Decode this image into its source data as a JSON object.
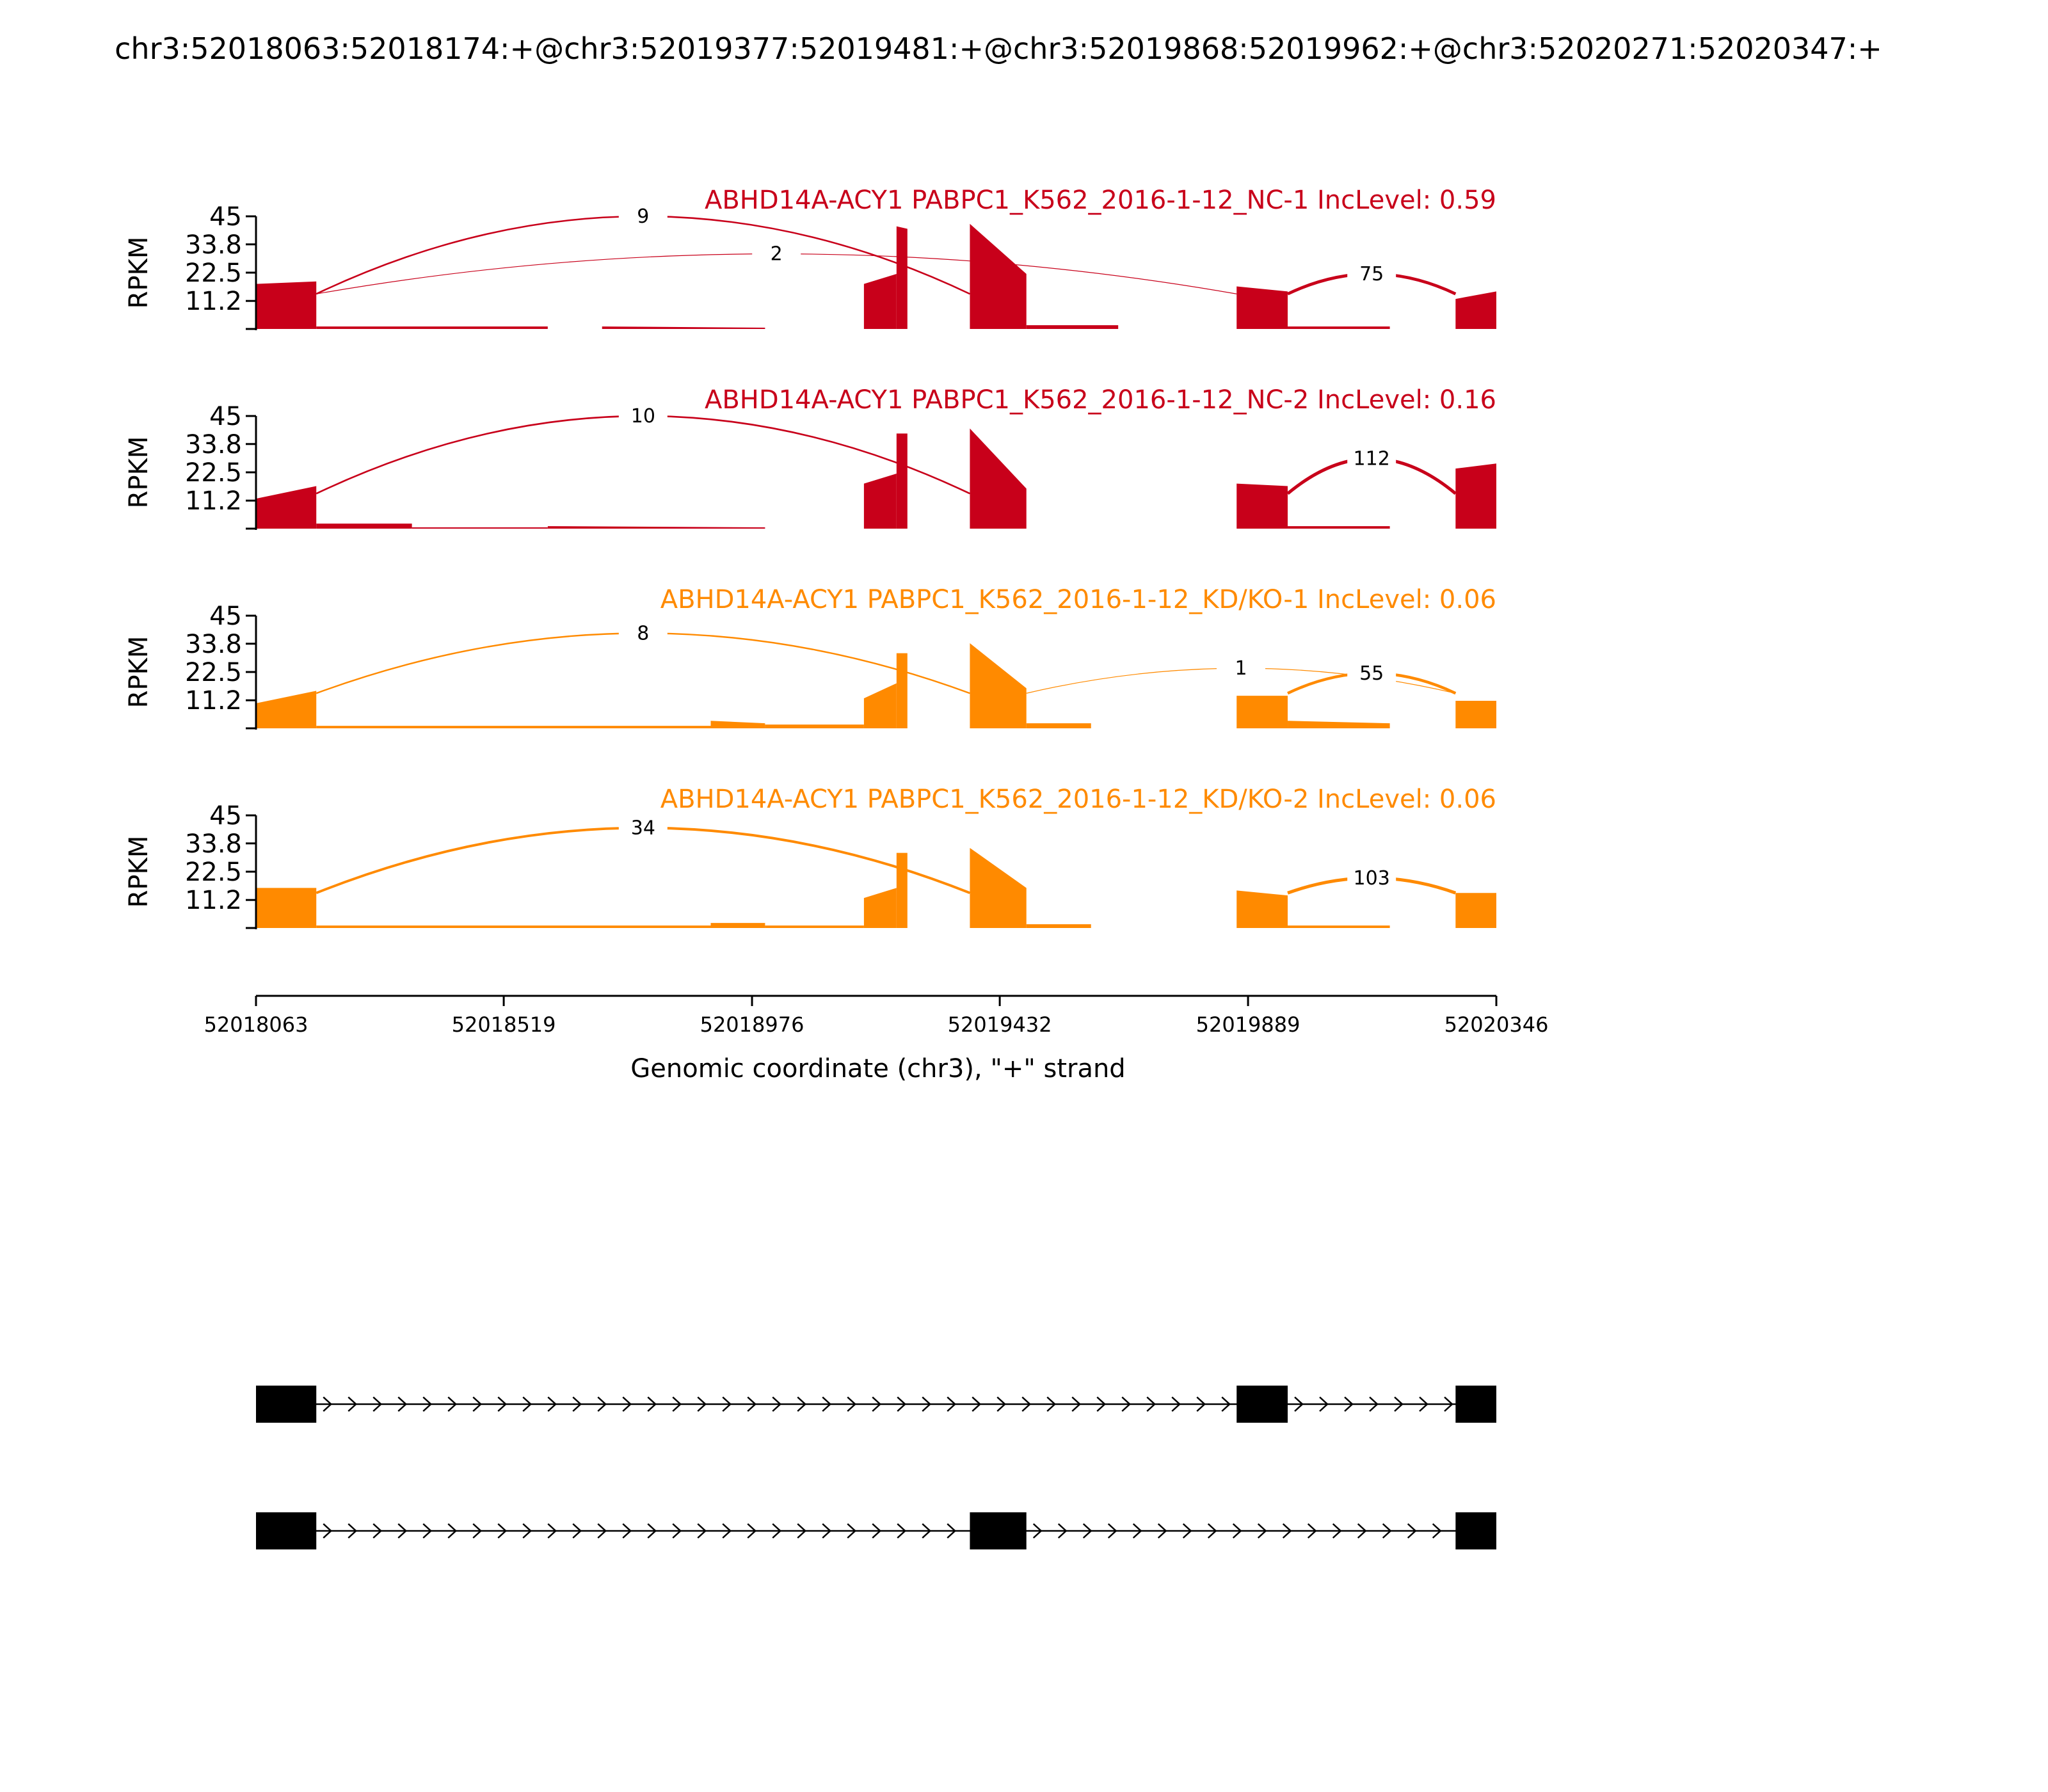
{
  "chart_data": {
    "type": "area",
    "title": "chr3:52018063:52018174:+@chr3:52019377:52019481:+@chr3:52019868:52019962:+@chr3:52020271:52020347:+",
    "xlabel": "Genomic coordinate (chr3), \"+\" strand",
    "ylabel": "RPKM",
    "xlim": [
      52018063,
      52020346
    ],
    "ylim": [
      0,
      45
    ],
    "x_ticks": [
      "52018063",
      "52018519",
      "52018976",
      "52019432",
      "52019889",
      "52020346"
    ],
    "y_ticks": [
      "11.2",
      "22.5",
      "33.8",
      "45"
    ],
    "colors": {
      "NC": "#c8001a",
      "KD": "#ff8a00",
      "axis": "#000000",
      "gene": "#000000"
    },
    "tracks": [
      {
        "label": "ABHD14A-ACY1 PABPC1_K562_2016-1-12_NC-1 IncLevel: 0.59",
        "color": "#c8001a",
        "coverage": [
          {
            "start": 52018063,
            "end": 52018174,
            "from": 18,
            "to": 19
          },
          {
            "start": 52018174,
            "end": 52018600,
            "from": 1,
            "to": 1
          },
          {
            "start": 52018700,
            "end": 52019000,
            "from": 1,
            "to": 0.5
          },
          {
            "start": 52019182,
            "end": 52019242,
            "from": 18,
            "to": 22
          },
          {
            "start": 52019242,
            "end": 52019262,
            "from": 41,
            "to": 40
          },
          {
            "start": 52019377,
            "end": 52019481,
            "from": 42,
            "to": 22
          },
          {
            "start": 52019481,
            "end": 52019650,
            "from": 1.5,
            "to": 1.5
          },
          {
            "start": 52019868,
            "end": 52019962,
            "from": 17,
            "to": 15
          },
          {
            "start": 52019962,
            "end": 52020150,
            "from": 1,
            "to": 1
          },
          {
            "start": 52020271,
            "end": 52020346,
            "from": 12,
            "to": 15
          }
        ],
        "junctions": [
          {
            "start": 52018174,
            "end": 52019377,
            "count": "9",
            "height": 45
          },
          {
            "start": 52018174,
            "end": 52019868,
            "count": "2",
            "height": 30
          },
          {
            "start": 52019962,
            "end": 52020271,
            "count": "75",
            "height": 22
          }
        ]
      },
      {
        "label": "ABHD14A-ACY1 PABPC1_K562_2016-1-12_NC-2 IncLevel: 0.16",
        "color": "#c8001a",
        "coverage": [
          {
            "start": 52018063,
            "end": 52018174,
            "from": 12,
            "to": 17
          },
          {
            "start": 52018174,
            "end": 52018350,
            "from": 2,
            "to": 2
          },
          {
            "start": 52018350,
            "end": 52018600,
            "from": 0.5,
            "to": 0.5
          },
          {
            "start": 52018600,
            "end": 52019000,
            "from": 1,
            "to": 0.5
          },
          {
            "start": 52019182,
            "end": 52019242,
            "from": 18,
            "to": 22
          },
          {
            "start": 52019242,
            "end": 52019262,
            "from": 38,
            "to": 38
          },
          {
            "start": 52019377,
            "end": 52019481,
            "from": 40,
            "to": 16
          },
          {
            "start": 52019868,
            "end": 52019962,
            "from": 18,
            "to": 17
          },
          {
            "start": 52019962,
            "end": 52020150,
            "from": 1,
            "to": 1
          },
          {
            "start": 52020271,
            "end": 52020346,
            "from": 24,
            "to": 26
          }
        ],
        "junctions": [
          {
            "start": 52018174,
            "end": 52019377,
            "count": "10",
            "height": 45
          },
          {
            "start": 52019962,
            "end": 52020271,
            "count": "112",
            "height": 28
          }
        ]
      },
      {
        "label": "ABHD14A-ACY1 PABPC1_K562_2016-1-12_KD/KO-1 IncLevel: 0.06",
        "color": "#ff8a00",
        "coverage": [
          {
            "start": 52018063,
            "end": 52018174,
            "from": 10,
            "to": 15
          },
          {
            "start": 52018174,
            "end": 52018900,
            "from": 1,
            "to": 1
          },
          {
            "start": 52018900,
            "end": 52019000,
            "from": 3,
            "to": 2
          },
          {
            "start": 52019000,
            "end": 52019182,
            "from": 1.5,
            "to": 1.5
          },
          {
            "start": 52019182,
            "end": 52019242,
            "from": 12,
            "to": 18
          },
          {
            "start": 52019242,
            "end": 52019262,
            "from": 30,
            "to": 30
          },
          {
            "start": 52019377,
            "end": 52019481,
            "from": 34,
            "to": 16
          },
          {
            "start": 52019481,
            "end": 52019600,
            "from": 2,
            "to": 2
          },
          {
            "start": 52019868,
            "end": 52019962,
            "from": 13,
            "to": 13
          },
          {
            "start": 52019962,
            "end": 52020150,
            "from": 3,
            "to": 2
          },
          {
            "start": 52020271,
            "end": 52020346,
            "from": 11,
            "to": 11
          }
        ],
        "junctions": [
          {
            "start": 52018174,
            "end": 52019377,
            "count": "8",
            "height": 38
          },
          {
            "start": 52019481,
            "end": 52020271,
            "count": "1",
            "height": 24
          },
          {
            "start": 52019962,
            "end": 52020271,
            "count": "55",
            "height": 22
          }
        ]
      },
      {
        "label": "ABHD14A-ACY1 PABPC1_K562_2016-1-12_KD/KO-2 IncLevel: 0.06",
        "color": "#ff8a00",
        "coverage": [
          {
            "start": 52018063,
            "end": 52018174,
            "from": 16,
            "to": 16
          },
          {
            "start": 52018174,
            "end": 52018900,
            "from": 1,
            "to": 1
          },
          {
            "start": 52018900,
            "end": 52019000,
            "from": 2,
            "to": 2
          },
          {
            "start": 52019000,
            "end": 52019182,
            "from": 1,
            "to": 1
          },
          {
            "start": 52019182,
            "end": 52019242,
            "from": 12,
            "to": 16
          },
          {
            "start": 52019242,
            "end": 52019262,
            "from": 30,
            "to": 30
          },
          {
            "start": 52019377,
            "end": 52019481,
            "from": 32,
            "to": 16
          },
          {
            "start": 52019481,
            "end": 52019600,
            "from": 1.5,
            "to": 1.5
          },
          {
            "start": 52019868,
            "end": 52019962,
            "from": 15,
            "to": 13
          },
          {
            "start": 52019962,
            "end": 52020150,
            "from": 1,
            "to": 1
          },
          {
            "start": 52020271,
            "end": 52020346,
            "from": 14,
            "to": 14
          }
        ],
        "junctions": [
          {
            "start": 52018174,
            "end": 52019377,
            "count": "34",
            "height": 40
          },
          {
            "start": 52019962,
            "end": 52020271,
            "count": "103",
            "height": 20
          }
        ]
      }
    ],
    "isoforms": [
      {
        "exons": [
          [
            52018063,
            52018174
          ],
          [
            52019868,
            52019962
          ],
          [
            52020271,
            52020346
          ]
        ]
      },
      {
        "exons": [
          [
            52018063,
            52018174
          ],
          [
            52019377,
            52019481
          ],
          [
            52020271,
            52020346
          ]
        ]
      }
    ]
  }
}
